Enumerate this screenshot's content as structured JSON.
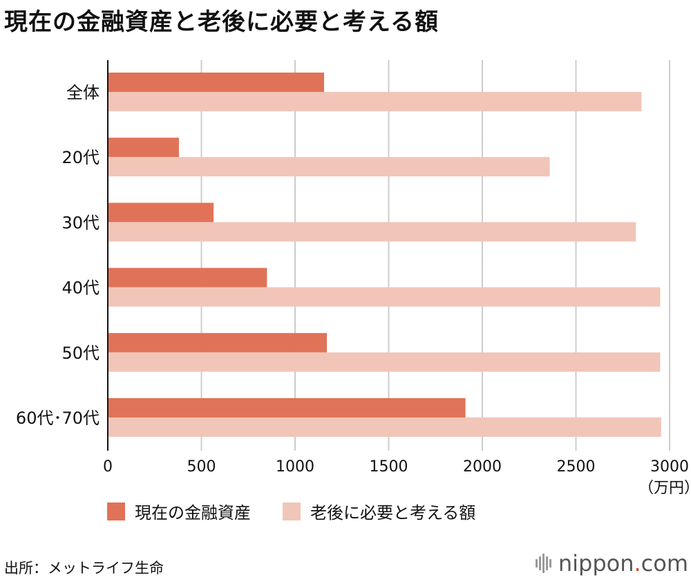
{
  "title": "現在の金融資産と老後に必要と考える額",
  "unit_label": "（万円）",
  "source": "出所：メットライフ生命",
  "brand": {
    "name": "nippon",
    "dot": ".",
    "tld": "com"
  },
  "colors": {
    "current": "#e07357",
    "needed": "#f2c5b9",
    "axis": "#111111",
    "grid": "#cccccc",
    "brand_dot": "#e0402a"
  },
  "chart_data": {
    "type": "bar",
    "orientation": "horizontal",
    "title": "現在の金融資産と老後に必要と考える額",
    "categories": [
      "全体",
      "20代",
      "30代",
      "40代",
      "50代",
      "60代･70代"
    ],
    "series": [
      {
        "name": "現在の金融資産",
        "values": [
          1155,
          380,
          565,
          850,
          1170,
          1910
        ]
      },
      {
        "name": "老後に必要と考える額",
        "values": [
          2850,
          2360,
          2820,
          2950,
          2950,
          2955
        ]
      }
    ],
    "xlim": [
      0,
      3000
    ],
    "xticks": [
      0,
      500,
      1000,
      1500,
      2000,
      2500,
      3000
    ],
    "xlabel": "（万円）",
    "grid": true,
    "legend": "bottom"
  }
}
